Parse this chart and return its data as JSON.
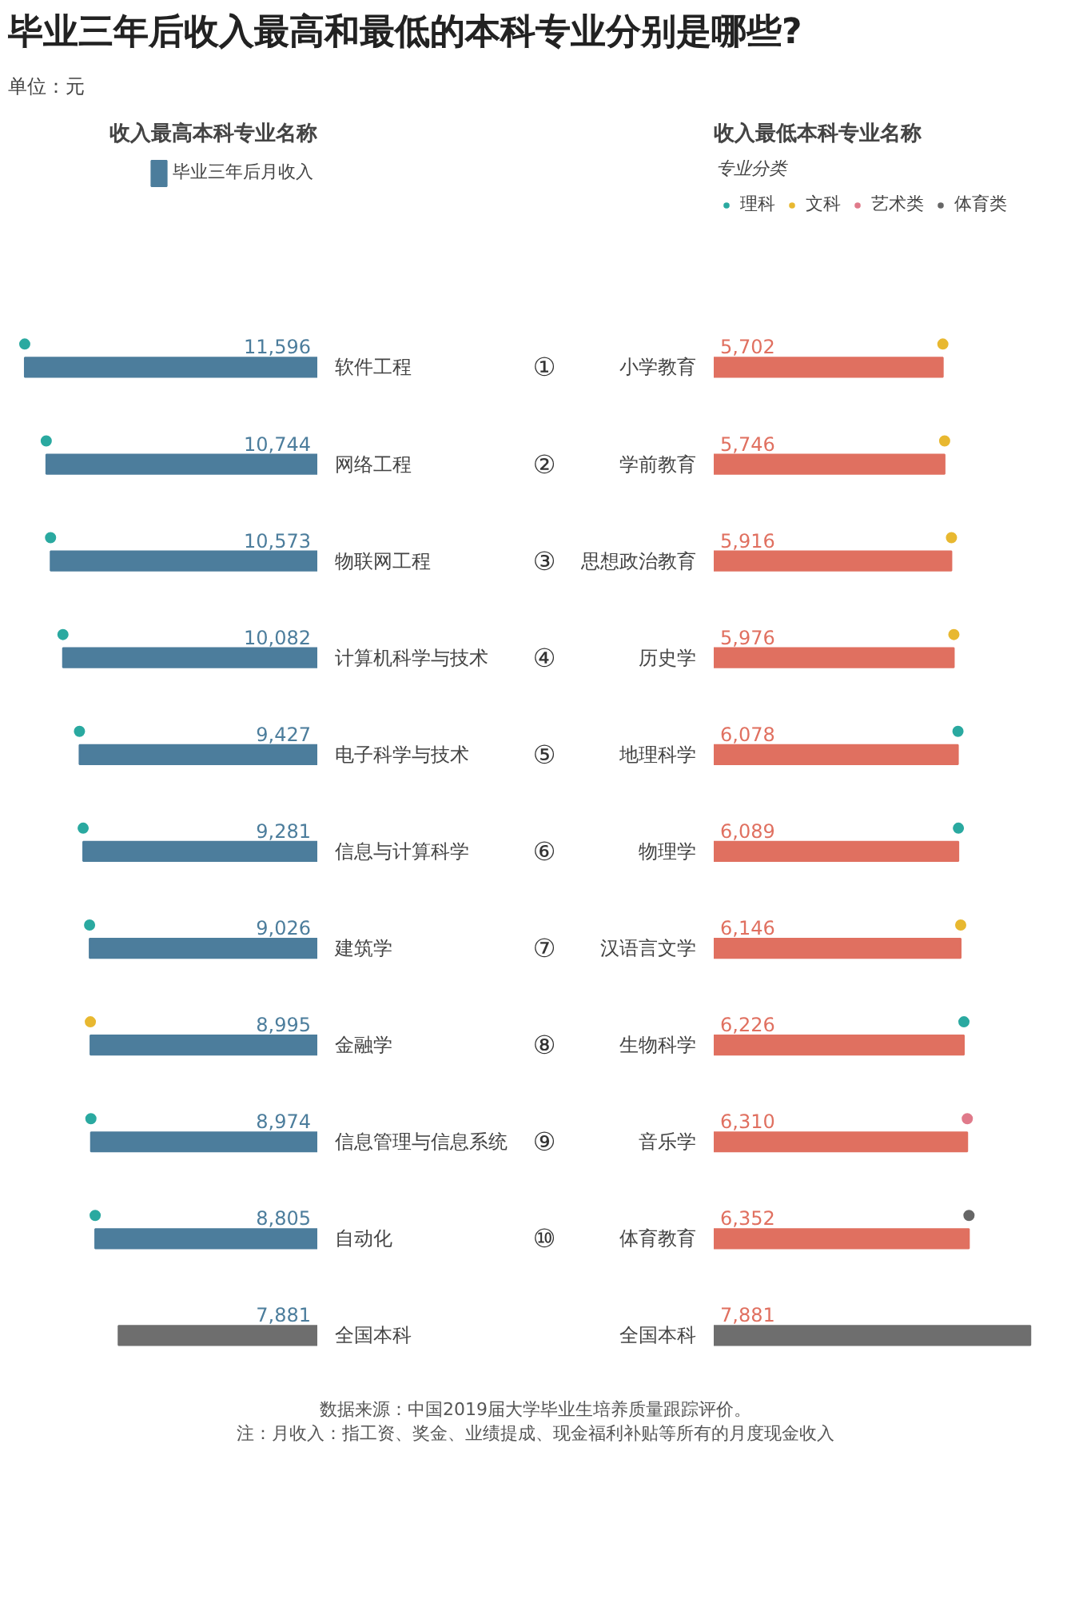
{
  "chart_data": [
    {
      "type": "bar",
      "orientation": "horizontal",
      "title": "毕业三年后收入最高和最低的本科专业分别是哪些?",
      "ylabel": "收入最高本科专业名称",
      "tick_labels": "y",
      "legend": "top",
      "categories": [
        "软件工程",
        "网络工程",
        "物联网工程",
        "计算机科学与技术",
        "电子科学与技术",
        "信息与计算科学",
        "建筑学",
        "金融学",
        "信息管理与信息系统",
        "自动化",
        "全国本科"
      ],
      "series": [
        {
          "name": "毕业三年后月收入",
          "color": "#4c7d9c",
          "colors": [
            "#4c7d9c",
            "#4c7d9c",
            "#4c7d9c",
            "#4c7d9c",
            "#4c7d9c",
            "#4c7d9c",
            "#4c7d9c",
            "#4c7d9c",
            "#4c7d9c",
            "#4c7d9c",
            "#6e6e6e"
          ],
          "values": [
            11596,
            10744,
            10573,
            10082,
            9427,
            9281,
            9026,
            8995,
            8974,
            8805,
            7881
          ],
          "value_labels": [
            "11,596",
            "10,744",
            "10,573",
            "10,082",
            "9,427",
            "9,281",
            "9,026",
            "8,995",
            "8,974",
            "8,805",
            "7,881"
          ]
        },
        {
          "type": "scatter",
          "color": "#2aa9a0",
          "values": [
            11596,
            10744,
            10573,
            10082,
            9427,
            9281,
            9026,
            null,
            8974,
            8805,
            null
          ]
        },
        {
          "type": "scatter",
          "color": "#e8b830",
          "values": [
            null,
            null,
            null,
            null,
            null,
            null,
            null,
            8995,
            null,
            null,
            null
          ]
        }
      ],
      "annotations": [
        "单位：元",
        "①",
        "②",
        "③",
        "④",
        "⑤",
        "⑥",
        "⑦",
        "⑧",
        "⑨",
        "⑩"
      ]
    },
    {
      "type": "bar",
      "orientation": "horizontal",
      "ylabel": "收入最低本科专业名称",
      "tick_labels": "y",
      "legend": "top",
      "legend_title": "专业分类",
      "categories": [
        "小学教育",
        "学前教育",
        "思想政治教育",
        "历史学",
        "地理科学",
        "物理学",
        "汉语言文学",
        "生物科学",
        "音乐学",
        "体育教育",
        "全国本科"
      ],
      "series": [
        {
          "color": "#e07060",
          "colors": [
            "#e07060",
            "#e07060",
            "#e07060",
            "#e07060",
            "#e07060",
            "#e07060",
            "#e07060",
            "#e07060",
            "#e07060",
            "#e07060",
            "#6e6e6e"
          ],
          "values": [
            5702,
            5746,
            5916,
            5976,
            6078,
            6089,
            6146,
            6226,
            6310,
            6352,
            7881
          ],
          "value_labels": [
            "5,702",
            "5,746",
            "5,916",
            "5,976",
            "6,078",
            "6,089",
            "6,146",
            "6,226",
            "6,310",
            "6,352",
            "7,881"
          ]
        },
        {
          "type": "scatter",
          "name": "理科",
          "color": "#2aa9a0",
          "values": [
            null,
            null,
            null,
            null,
            6078,
            6089,
            null,
            6226,
            null,
            null,
            null
          ]
        },
        {
          "type": "scatter",
          "name": "文科",
          "color": "#e8b830",
          "values": [
            5702,
            5746,
            5916,
            5976,
            null,
            null,
            6146,
            null,
            null,
            null,
            null
          ]
        },
        {
          "type": "scatter",
          "name": "艺术类",
          "color": "#e07a8a",
          "values": [
            null,
            null,
            null,
            null,
            null,
            null,
            null,
            null,
            6310,
            null,
            null
          ]
        },
        {
          "type": "scatter",
          "name": "体育类",
          "color": "#666666",
          "values": [
            null,
            null,
            null,
            null,
            null,
            null,
            null,
            null,
            null,
            6352,
            null
          ]
        }
      ],
      "annotations": [
        "数据来源：中国2019届大学毕业生培养质量跟踪评价。",
        "注：月收入：指工资、奖金、业绩提成、现金福利补贴等所有的月度现金收入"
      ]
    }
  ]
}
